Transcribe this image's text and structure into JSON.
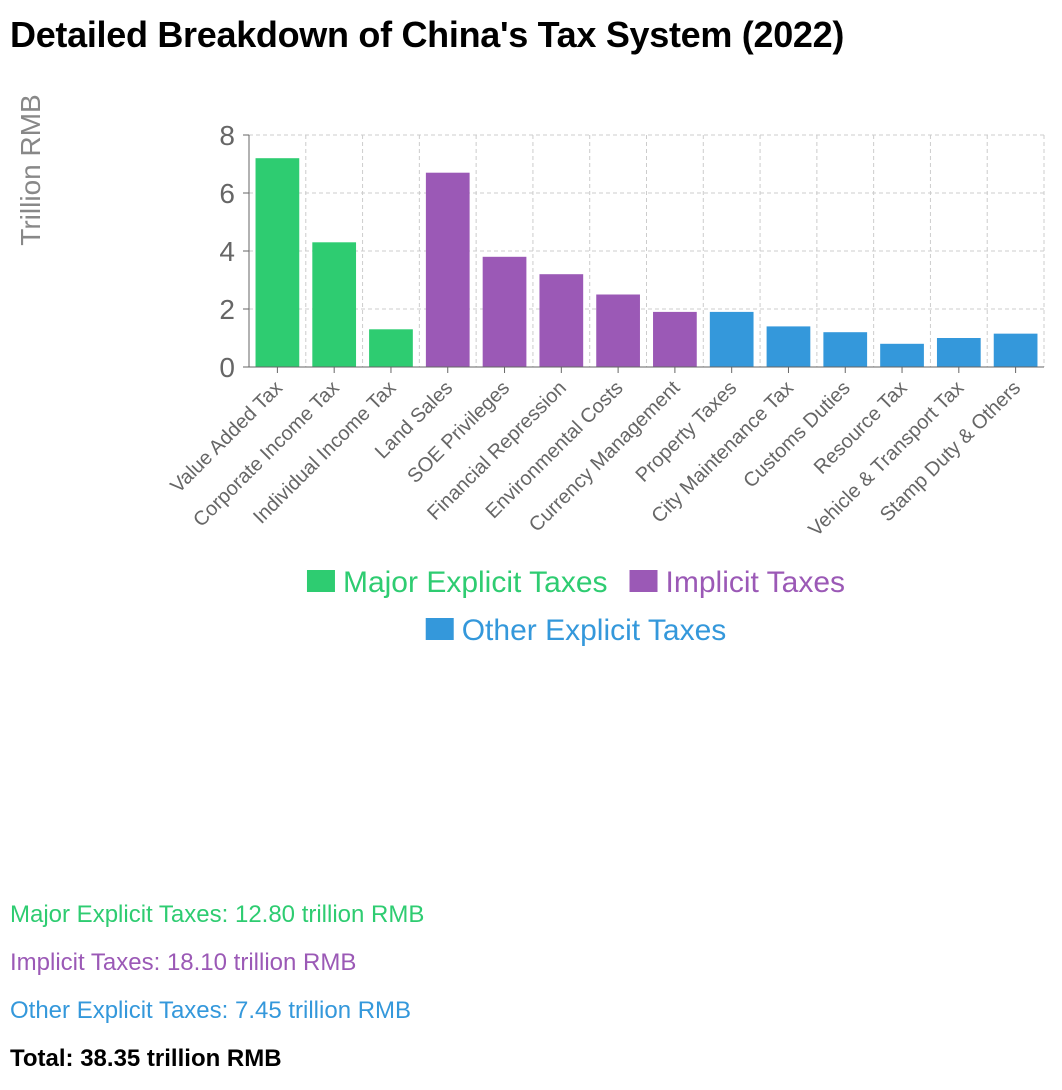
{
  "title": "Detailed Breakdown of China's Tax System (2022)",
  "colors": {
    "major": "#2ecc71",
    "implicit": "#9b59b6",
    "other": "#3498db",
    "axis_text": "#666666",
    "grid": "#cccccc"
  },
  "chart_data": {
    "type": "bar",
    "ylabel": "Trillion RMB",
    "ylim": [
      0,
      8
    ],
    "yticks": [
      0,
      2,
      4,
      6,
      8
    ],
    "grid": true,
    "categories": [
      "Value Added Tax",
      "Corporate Income Tax",
      "Individual Income Tax",
      "Land Sales",
      "SOE Privileges",
      "Financial Repression",
      "Environmental Costs",
      "Currency Management",
      "Property Taxes",
      "City Maintenance Tax",
      "Customs Duties",
      "Resource Tax",
      "Vehicle & Transport Tax",
      "Stamp Duty & Others"
    ],
    "values": [
      7.2,
      4.3,
      1.3,
      6.7,
      3.8,
      3.2,
      2.5,
      1.9,
      1.9,
      1.4,
      1.2,
      0.8,
      1.0,
      1.15
    ],
    "groups": [
      "major",
      "major",
      "major",
      "implicit",
      "implicit",
      "implicit",
      "implicit",
      "implicit",
      "other",
      "other",
      "other",
      "other",
      "other",
      "other"
    ],
    "legend": [
      {
        "key": "major",
        "label": "Major Explicit Taxes"
      },
      {
        "key": "implicit",
        "label": "Implicit Taxes"
      },
      {
        "key": "other",
        "label": "Other Explicit Taxes"
      }
    ]
  },
  "summary": {
    "major": "Major Explicit Taxes: 12.80 trillion RMB",
    "implicit": "Implicit Taxes: 18.10 trillion RMB",
    "other": "Other Explicit Taxes: 7.45 trillion RMB",
    "total": "Total: 38.35 trillion RMB"
  }
}
